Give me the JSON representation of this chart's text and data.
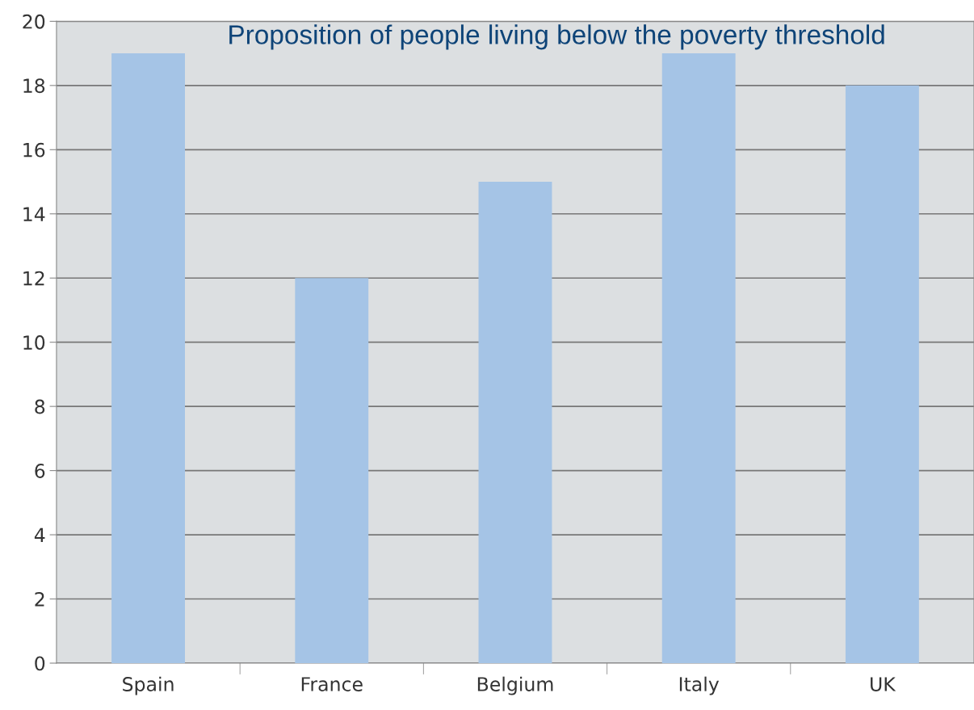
{
  "chart_data": {
    "type": "bar",
    "title": "Proposition of people living below the poverty threshold",
    "categories": [
      "Spain",
      "France",
      "Belgium",
      "Italy",
      "UK"
    ],
    "values": [
      19,
      12,
      15,
      19,
      18
    ],
    "color": "#a5c4e6",
    "ylim": [
      0,
      20
    ],
    "yticks": [
      0,
      2,
      4,
      6,
      8,
      10,
      12,
      14,
      16,
      18,
      20
    ],
    "grid": "y"
  }
}
